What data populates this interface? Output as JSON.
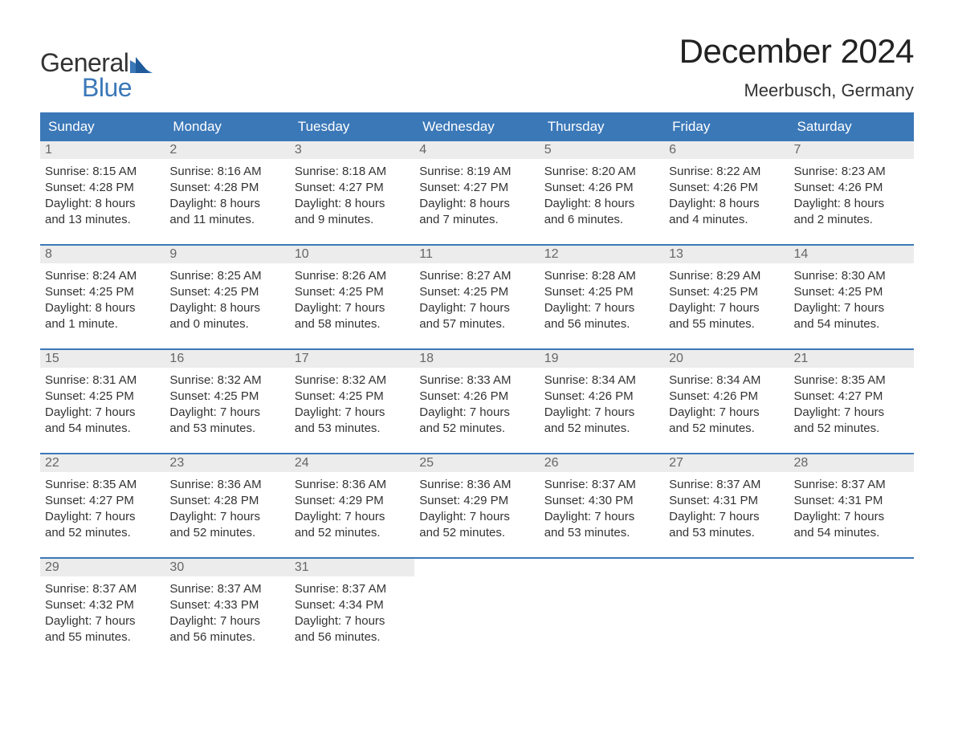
{
  "logo": {
    "text_top": "General",
    "text_bottom": "Blue"
  },
  "title": "December 2024",
  "location": "Meerbusch, Germany",
  "colors": {
    "header_bg": "#3b78b8",
    "header_text": "#ffffff",
    "daynum_bg": "#ececec",
    "daynum_text": "#666666",
    "body_text": "#333333",
    "week_border": "#3b78b8",
    "logo_blue": "#3b78b8"
  },
  "day_names": [
    "Sunday",
    "Monday",
    "Tuesday",
    "Wednesday",
    "Thursday",
    "Friday",
    "Saturday"
  ],
  "weeks": [
    [
      {
        "num": "1",
        "sunrise": "Sunrise: 8:15 AM",
        "sunset": "Sunset: 4:28 PM",
        "dl1": "Daylight: 8 hours",
        "dl2": "and 13 minutes."
      },
      {
        "num": "2",
        "sunrise": "Sunrise: 8:16 AM",
        "sunset": "Sunset: 4:28 PM",
        "dl1": "Daylight: 8 hours",
        "dl2": "and 11 minutes."
      },
      {
        "num": "3",
        "sunrise": "Sunrise: 8:18 AM",
        "sunset": "Sunset: 4:27 PM",
        "dl1": "Daylight: 8 hours",
        "dl2": "and 9 minutes."
      },
      {
        "num": "4",
        "sunrise": "Sunrise: 8:19 AM",
        "sunset": "Sunset: 4:27 PM",
        "dl1": "Daylight: 8 hours",
        "dl2": "and 7 minutes."
      },
      {
        "num": "5",
        "sunrise": "Sunrise: 8:20 AM",
        "sunset": "Sunset: 4:26 PM",
        "dl1": "Daylight: 8 hours",
        "dl2": "and 6 minutes."
      },
      {
        "num": "6",
        "sunrise": "Sunrise: 8:22 AM",
        "sunset": "Sunset: 4:26 PM",
        "dl1": "Daylight: 8 hours",
        "dl2": "and 4 minutes."
      },
      {
        "num": "7",
        "sunrise": "Sunrise: 8:23 AM",
        "sunset": "Sunset: 4:26 PM",
        "dl1": "Daylight: 8 hours",
        "dl2": "and 2 minutes."
      }
    ],
    [
      {
        "num": "8",
        "sunrise": "Sunrise: 8:24 AM",
        "sunset": "Sunset: 4:25 PM",
        "dl1": "Daylight: 8 hours",
        "dl2": "and 1 minute."
      },
      {
        "num": "9",
        "sunrise": "Sunrise: 8:25 AM",
        "sunset": "Sunset: 4:25 PM",
        "dl1": "Daylight: 8 hours",
        "dl2": "and 0 minutes."
      },
      {
        "num": "10",
        "sunrise": "Sunrise: 8:26 AM",
        "sunset": "Sunset: 4:25 PM",
        "dl1": "Daylight: 7 hours",
        "dl2": "and 58 minutes."
      },
      {
        "num": "11",
        "sunrise": "Sunrise: 8:27 AM",
        "sunset": "Sunset: 4:25 PM",
        "dl1": "Daylight: 7 hours",
        "dl2": "and 57 minutes."
      },
      {
        "num": "12",
        "sunrise": "Sunrise: 8:28 AM",
        "sunset": "Sunset: 4:25 PM",
        "dl1": "Daylight: 7 hours",
        "dl2": "and 56 minutes."
      },
      {
        "num": "13",
        "sunrise": "Sunrise: 8:29 AM",
        "sunset": "Sunset: 4:25 PM",
        "dl1": "Daylight: 7 hours",
        "dl2": "and 55 minutes."
      },
      {
        "num": "14",
        "sunrise": "Sunrise: 8:30 AM",
        "sunset": "Sunset: 4:25 PM",
        "dl1": "Daylight: 7 hours",
        "dl2": "and 54 minutes."
      }
    ],
    [
      {
        "num": "15",
        "sunrise": "Sunrise: 8:31 AM",
        "sunset": "Sunset: 4:25 PM",
        "dl1": "Daylight: 7 hours",
        "dl2": "and 54 minutes."
      },
      {
        "num": "16",
        "sunrise": "Sunrise: 8:32 AM",
        "sunset": "Sunset: 4:25 PM",
        "dl1": "Daylight: 7 hours",
        "dl2": "and 53 minutes."
      },
      {
        "num": "17",
        "sunrise": "Sunrise: 8:32 AM",
        "sunset": "Sunset: 4:25 PM",
        "dl1": "Daylight: 7 hours",
        "dl2": "and 53 minutes."
      },
      {
        "num": "18",
        "sunrise": "Sunrise: 8:33 AM",
        "sunset": "Sunset: 4:26 PM",
        "dl1": "Daylight: 7 hours",
        "dl2": "and 52 minutes."
      },
      {
        "num": "19",
        "sunrise": "Sunrise: 8:34 AM",
        "sunset": "Sunset: 4:26 PM",
        "dl1": "Daylight: 7 hours",
        "dl2": "and 52 minutes."
      },
      {
        "num": "20",
        "sunrise": "Sunrise: 8:34 AM",
        "sunset": "Sunset: 4:26 PM",
        "dl1": "Daylight: 7 hours",
        "dl2": "and 52 minutes."
      },
      {
        "num": "21",
        "sunrise": "Sunrise: 8:35 AM",
        "sunset": "Sunset: 4:27 PM",
        "dl1": "Daylight: 7 hours",
        "dl2": "and 52 minutes."
      }
    ],
    [
      {
        "num": "22",
        "sunrise": "Sunrise: 8:35 AM",
        "sunset": "Sunset: 4:27 PM",
        "dl1": "Daylight: 7 hours",
        "dl2": "and 52 minutes."
      },
      {
        "num": "23",
        "sunrise": "Sunrise: 8:36 AM",
        "sunset": "Sunset: 4:28 PM",
        "dl1": "Daylight: 7 hours",
        "dl2": "and 52 minutes."
      },
      {
        "num": "24",
        "sunrise": "Sunrise: 8:36 AM",
        "sunset": "Sunset: 4:29 PM",
        "dl1": "Daylight: 7 hours",
        "dl2": "and 52 minutes."
      },
      {
        "num": "25",
        "sunrise": "Sunrise: 8:36 AM",
        "sunset": "Sunset: 4:29 PM",
        "dl1": "Daylight: 7 hours",
        "dl2": "and 52 minutes."
      },
      {
        "num": "26",
        "sunrise": "Sunrise: 8:37 AM",
        "sunset": "Sunset: 4:30 PM",
        "dl1": "Daylight: 7 hours",
        "dl2": "and 53 minutes."
      },
      {
        "num": "27",
        "sunrise": "Sunrise: 8:37 AM",
        "sunset": "Sunset: 4:31 PM",
        "dl1": "Daylight: 7 hours",
        "dl2": "and 53 minutes."
      },
      {
        "num": "28",
        "sunrise": "Sunrise: 8:37 AM",
        "sunset": "Sunset: 4:31 PM",
        "dl1": "Daylight: 7 hours",
        "dl2": "and 54 minutes."
      }
    ],
    [
      {
        "num": "29",
        "sunrise": "Sunrise: 8:37 AM",
        "sunset": "Sunset: 4:32 PM",
        "dl1": "Daylight: 7 hours",
        "dl2": "and 55 minutes."
      },
      {
        "num": "30",
        "sunrise": "Sunrise: 8:37 AM",
        "sunset": "Sunset: 4:33 PM",
        "dl1": "Daylight: 7 hours",
        "dl2": "and 56 minutes."
      },
      {
        "num": "31",
        "sunrise": "Sunrise: 8:37 AM",
        "sunset": "Sunset: 4:34 PM",
        "dl1": "Daylight: 7 hours",
        "dl2": "and 56 minutes."
      },
      null,
      null,
      null,
      null
    ]
  ]
}
